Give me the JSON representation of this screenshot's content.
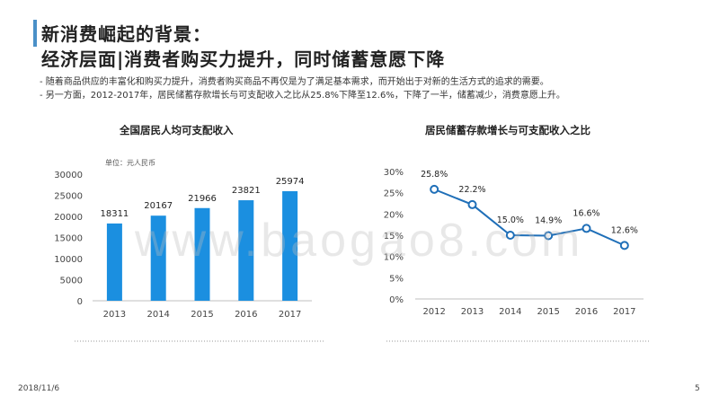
{
  "header": {
    "title_line1": "新消费崛起的背景：",
    "title_line2": "经济层面|消费者购买力提升，同时储蓄意愿下降",
    "accent_color": "#4a90c8"
  },
  "bullets": [
    "-  随着商品供应的丰富化和购买力提升，消费者购买商品不再仅是为了满足基本需求，而开始出于对新的生活方式的追求的需要。",
    "-  另一方面，2012-2017年，居民储蓄存款增长与可支配收入之比从25.8%下降至12.6%，下降了一半，储蓄减少，消费意愿上升。"
  ],
  "watermark": "www.baogao8.com",
  "footer": {
    "date": "2018/11/6",
    "page": "5"
  },
  "chart_data": [
    {
      "type": "bar",
      "title": "全国居民人均可支配收入",
      "unit_note": "单位：元人民币",
      "categories": [
        "2013",
        "2014",
        "2015",
        "2016",
        "2017"
      ],
      "values": [
        18311,
        20167,
        21966,
        23821,
        25974
      ],
      "ylim": [
        0,
        30000
      ],
      "yticks": [
        "0",
        "5000",
        "10000",
        "15000",
        "20000",
        "25000",
        "30000"
      ],
      "grid": false,
      "color": "#1b8fe0"
    },
    {
      "type": "line",
      "title": "居民储蓄存款增长与可支配收入之比",
      "categories": [
        "2012",
        "2013",
        "2014",
        "2015",
        "2016",
        "2017"
      ],
      "values": [
        25.8,
        22.2,
        15.0,
        14.9,
        16.6,
        12.6
      ],
      "labels": [
        "25.8%",
        "22.2%",
        "15.0%",
        "14.9%",
        "16.6%",
        "12.6%"
      ],
      "ylim": [
        0,
        30
      ],
      "yticks": [
        "0%",
        "5%",
        "10%",
        "15%",
        "20%",
        "25%",
        "30%"
      ],
      "grid": false,
      "color": "#1f6fb8"
    }
  ]
}
